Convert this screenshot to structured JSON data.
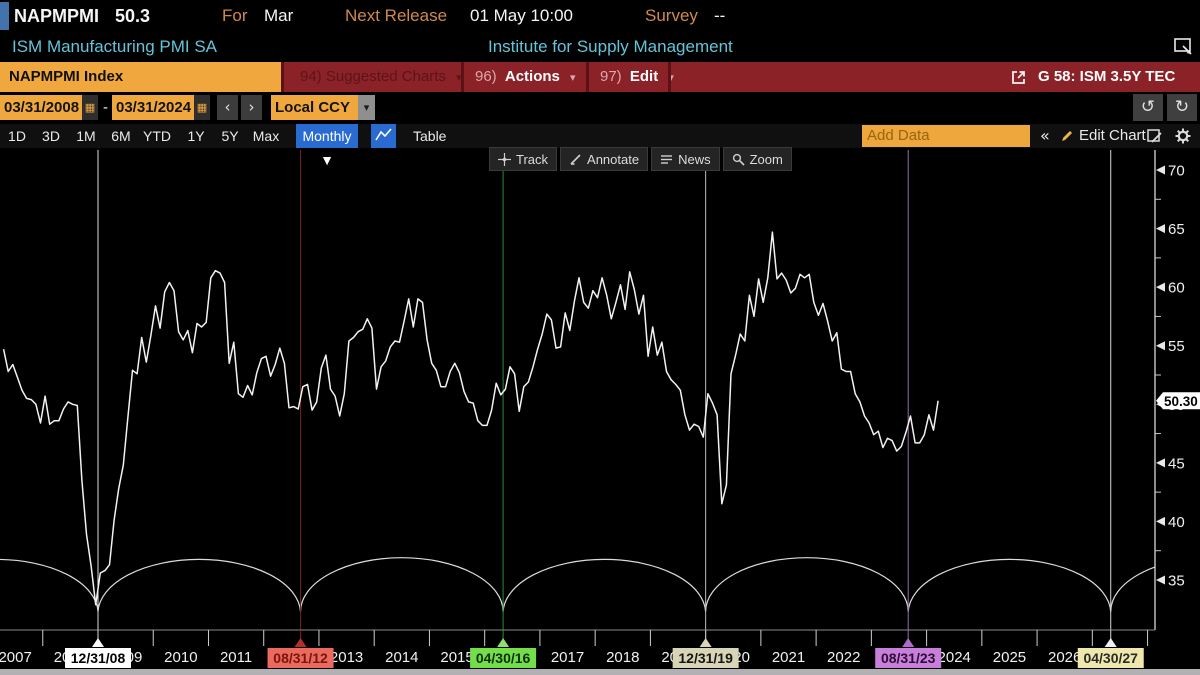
{
  "header": {
    "ticker": "NAPMPMI",
    "last": "50.3",
    "for_label": "For",
    "for_value": "Mar",
    "next_release_label": "Next Release",
    "next_release_value": "01 May 10:00",
    "survey_label": "Survey",
    "survey_value": "--",
    "security_name": "ISM Manufacturing PMI SA",
    "source": "Institute for Supply Management"
  },
  "menubar": {
    "security_field": "NAPMPMI Index",
    "suggested_num": "94)",
    "suggested_label": "Suggested Charts",
    "actions_num": "96)",
    "actions_label": "Actions",
    "edit_num": "97)",
    "edit_label": "Edit",
    "chart_tag": "G 58: ISM 3.5Y TEC"
  },
  "daterow": {
    "start": "03/31/2008",
    "end": "03/31/2024",
    "dash": "-",
    "prev": "‹",
    "next": "›",
    "currency": "Local CCY"
  },
  "periodbar": {
    "ranges": [
      "1D",
      "3D",
      "1M",
      "6M",
      "YTD",
      "1Y",
      "5Y",
      "Max"
    ],
    "frequency": "Monthly ▼",
    "table": "Table",
    "add_data_placeholder": "Add Data",
    "collapse": "«",
    "edit_chart": "Edit Chart"
  },
  "icons": {
    "calendar": "▦",
    "caret_down": "▾",
    "undo": "↺",
    "redo": "↻"
  },
  "chart_toolbar": [
    "Track",
    "Annotate",
    "News",
    "Zoom"
  ],
  "chart_data": {
    "type": "line",
    "title": "ISM Manufacturing PMI SA",
    "ylim": [
      32,
      71.5
    ],
    "yticks": [
      35,
      40,
      45,
      50,
      55,
      60,
      65,
      70
    ],
    "last_value_label": "50.30",
    "years": [
      2007,
      2008,
      2009,
      2010,
      2011,
      2012,
      2013,
      2014,
      2015,
      2016,
      2017,
      2018,
      2019,
      2020,
      2021,
      2022,
      2023,
      2024,
      2025,
      2026
    ],
    "series": [
      {
        "name": "NAPMPMI Index",
        "start": "2007-04",
        "freq": "monthly",
        "color": "#f2f2f2",
        "values": [
          54.7,
          52.8,
          53.4,
          52.3,
          51.2,
          50.5,
          50.4,
          50.0,
          48.4,
          50.7,
          48.3,
          48.6,
          48.6,
          49.6,
          50.2,
          50.0,
          49.9,
          43.5,
          38.9,
          36.2,
          32.9,
          35.6,
          35.8,
          36.3,
          40.1,
          42.8,
          44.8,
          48.9,
          52.9,
          52.6,
          55.7,
          53.6,
          55.9,
          58.4,
          56.5,
          59.6,
          60.4,
          59.7,
          56.2,
          55.5,
          56.3,
          54.4,
          56.9,
          56.6,
          57.0,
          60.8,
          61.4,
          61.2,
          60.4,
          53.5,
          55.3,
          50.9,
          50.6,
          51.6,
          50.8,
          52.7,
          53.9,
          54.1,
          52.4,
          53.4,
          54.8,
          53.5,
          49.7,
          49.8,
          49.6,
          51.5,
          51.7,
          49.5,
          50.2,
          53.1,
          54.2,
          51.3,
          50.7,
          49.0,
          50.9,
          55.4,
          55.7,
          56.2,
          56.4,
          57.3,
          56.5,
          51.3,
          53.2,
          53.7,
          54.9,
          55.4,
          55.3,
          57.1,
          59.0,
          56.6,
          59.0,
          58.7,
          55.5,
          53.5,
          52.9,
          51.5,
          51.5,
          52.8,
          53.5,
          52.7,
          51.1,
          50.2,
          50.1,
          48.6,
          48.2,
          48.2,
          49.5,
          51.8,
          50.8,
          51.3,
          53.2,
          52.6,
          49.4,
          51.5,
          51.9,
          53.2,
          54.7,
          56.0,
          57.7,
          57.2,
          54.8,
          54.9,
          57.8,
          56.3,
          58.8,
          60.8,
          58.7,
          58.2,
          59.7,
          59.1,
          60.8,
          59.3,
          57.3,
          58.7,
          60.2,
          58.1,
          61.3,
          59.8,
          57.7,
          59.3,
          54.1,
          56.6,
          54.2,
          55.3,
          52.8,
          52.1,
          51.7,
          51.2,
          49.1,
          47.8,
          48.3,
          48.1,
          47.2,
          50.9,
          50.1,
          49.1,
          41.5,
          43.1,
          52.6,
          54.2,
          56.0,
          55.4,
          59.3,
          57.5,
          60.7,
          58.7,
          60.8,
          64.7,
          60.7,
          61.2,
          60.6,
          59.5,
          59.9,
          61.1,
          60.8,
          61.1,
          58.7,
          57.6,
          58.6,
          57.1,
          55.4,
          56.1,
          53.0,
          52.8,
          52.8,
          50.9,
          50.2,
          49.0,
          48.4,
          47.4,
          47.7,
          46.3,
          47.1,
          46.9,
          46.0,
          46.4,
          47.6,
          49.0,
          46.7,
          46.7,
          47.4,
          49.1,
          47.8,
          50.3
        ]
      }
    ],
    "event_lines": [
      {
        "date": "12/31/08",
        "t": 2009.0,
        "line_color": "#dedede",
        "tri_color": "#ffffff",
        "label_bg": "#ffffff",
        "label_color": "#000000"
      },
      {
        "date": "08/31/12",
        "t": 2012.6667,
        "line_color": "#7d1d1d",
        "tri_color": "#b23026",
        "label_bg": "#ea6a5e",
        "label_color": "#7a150c"
      },
      {
        "date": "04/30/16",
        "t": 2016.3333,
        "line_color": "#2f8a33",
        "tri_color": "#8fe06a",
        "label_bg": "#74dd4a",
        "label_color": "#0d2e08"
      },
      {
        "date": "12/31/19",
        "t": 2020.0,
        "line_color": "#bdbdbd",
        "tri_color": "#d8d4b6",
        "label_bg": "#d8d4b6",
        "label_color": "#141414"
      },
      {
        "date": "08/31/23",
        "t": 2023.6667,
        "line_color": "#9a6ab8",
        "tri_color": "#b06cc8",
        "label_bg": "#c77fd9",
        "label_color": "#2d0d38"
      },
      {
        "date": "04/30/27",
        "t": 2027.3333,
        "line_color": "#d8d8d8",
        "tri_color": "#f0f0f0",
        "label_bg": "#eee8ac",
        "label_color": "#2a2a2a"
      }
    ],
    "cycle": {
      "anchor_t": 2009.0,
      "period_years": 3.6667,
      "trough_value": 32.3,
      "peak_value": 36.9,
      "arc_color": "#dcdcdc"
    },
    "legend_position": "none",
    "grid": false
  }
}
